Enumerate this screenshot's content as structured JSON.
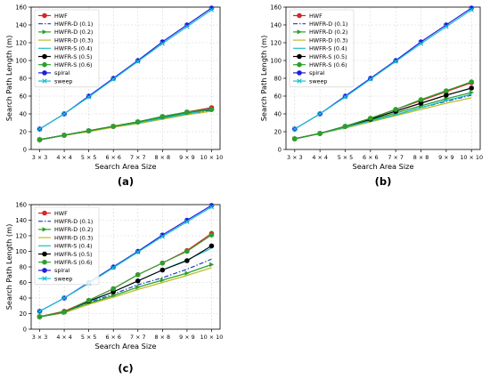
{
  "chart_data": [
    {
      "type": "line",
      "panel_label": "(a)",
      "xlabel": "Search Area Size",
      "ylabel": "Search Path Length (m)",
      "categories": [
        "3 × 3",
        "4 × 4",
        "5 × 5",
        "6 × 6",
        "7 × 7",
        "8 × 8",
        "9 × 9",
        "10 × 10"
      ],
      "ylim": [
        0,
        160
      ],
      "yticks": [
        0,
        20,
        40,
        60,
        80,
        100,
        120,
        140,
        160
      ],
      "grid": true,
      "legend": "top-left",
      "series": [
        {
          "name": "HWF",
          "color": "#d62728",
          "style": "solid",
          "marker": "o",
          "values": [
            11,
            16,
            21,
            26,
            31,
            36,
            42,
            47
          ]
        },
        {
          "name": "HWFR-D (0.1)",
          "color": "#1f3fbf",
          "style": "dashdot",
          "marker": "none",
          "values": [
            11,
            16,
            21,
            25,
            30,
            35,
            40,
            44
          ]
        },
        {
          "name": "HWFR-D (0.2)",
          "color": "#2ca02c",
          "style": "solid",
          "marker": ">",
          "values": [
            11,
            16,
            21,
            26,
            31,
            36,
            41,
            46
          ]
        },
        {
          "name": "HWFR-D (0.3)",
          "color": "#bcbd22",
          "style": "solid",
          "marker": "none",
          "values": [
            11,
            16,
            20,
            25,
            29,
            34,
            39,
            43
          ]
        },
        {
          "name": "HWFR-S (0.4)",
          "color": "#17becf",
          "style": "solid",
          "marker": "none",
          "values": [
            11,
            16,
            21,
            26,
            30,
            35,
            40,
            45
          ]
        },
        {
          "name": "HWFR-S (0.5)",
          "color": "#000000",
          "style": "solid",
          "marker": "o",
          "values": [
            11,
            16,
            21,
            26,
            31,
            37,
            42,
            45
          ]
        },
        {
          "name": "HWFR-S (0.6)",
          "color": "#2ca02c",
          "style": "solid",
          "marker": "o",
          "values": [
            11,
            16,
            21,
            26,
            31,
            37,
            42,
            45
          ]
        },
        {
          "name": "spiral",
          "color": "#1f1fdd",
          "style": "solid",
          "marker": "o",
          "values": [
            23,
            40,
            60,
            80,
            100,
            121,
            140,
            159
          ]
        },
        {
          "name": "sweep",
          "color": "#17becf",
          "style": "solid",
          "marker": "x",
          "values": [
            23,
            40,
            59,
            79,
            99,
            119,
            138,
            157
          ]
        }
      ]
    },
    {
      "type": "line",
      "panel_label": "(b)",
      "xlabel": "Search Area Size",
      "ylabel": "Search Path Length (m)",
      "categories": [
        "3 × 3",
        "4 × 4",
        "5 × 5",
        "6 × 6",
        "7 × 7",
        "8 × 8",
        "9 × 9",
        "10 × 10"
      ],
      "ylim": [
        0,
        160
      ],
      "yticks": [
        0,
        20,
        40,
        60,
        80,
        100,
        120,
        140,
        160
      ],
      "grid": true,
      "legend": "top-left",
      "series": [
        {
          "name": "HWF",
          "color": "#d62728",
          "style": "solid",
          "marker": "o",
          "values": [
            12,
            18,
            26,
            35,
            45,
            55,
            65,
            75
          ]
        },
        {
          "name": "HWFR-D (0.1)",
          "color": "#1f3fbf",
          "style": "dashdot",
          "marker": "none",
          "values": [
            12,
            18,
            25,
            32,
            39,
            47,
            54,
            61
          ]
        },
        {
          "name": "HWFR-D (0.2)",
          "color": "#2ca02c",
          "style": "solid",
          "marker": ">",
          "values": [
            12,
            18,
            25,
            33,
            41,
            49,
            57,
            64
          ]
        },
        {
          "name": "HWFR-D (0.3)",
          "color": "#bcbd22",
          "style": "solid",
          "marker": "none",
          "values": [
            12,
            18,
            24,
            31,
            38,
            45,
            52,
            58
          ]
        },
        {
          "name": "HWFR-S (0.4)",
          "color": "#17becf",
          "style": "solid",
          "marker": "none",
          "values": [
            12,
            18,
            25,
            32,
            39,
            47,
            55,
            62
          ]
        },
        {
          "name": "HWFR-S (0.5)",
          "color": "#000000",
          "style": "solid",
          "marker": "o",
          "values": [
            12,
            18,
            26,
            34,
            43,
            52,
            61,
            69
          ]
        },
        {
          "name": "HWFR-S (0.6)",
          "color": "#2ca02c",
          "style": "solid",
          "marker": "o",
          "values": [
            12,
            18,
            26,
            35,
            45,
            56,
            66,
            76
          ]
        },
        {
          "name": "spiral",
          "color": "#1f1fdd",
          "style": "solid",
          "marker": "o",
          "values": [
            23,
            40,
            60,
            80,
            100,
            121,
            140,
            159
          ]
        },
        {
          "name": "sweep",
          "color": "#17becf",
          "style": "solid",
          "marker": "x",
          "values": [
            23,
            40,
            59,
            79,
            99,
            119,
            138,
            157
          ]
        }
      ]
    },
    {
      "type": "line",
      "panel_label": "(c)",
      "xlabel": "Search Area Size",
      "ylabel": "Search Path Length (m)",
      "categories": [
        "3 × 3",
        "4 × 4",
        "5 × 5",
        "6 × 6",
        "7 × 7",
        "8 × 8",
        "9 × 9",
        "10 × 10"
      ],
      "ylim": [
        0,
        160
      ],
      "yticks": [
        0,
        20,
        40,
        60,
        80,
        100,
        120,
        140,
        160
      ],
      "grid": true,
      "legend": "top-left",
      "series": [
        {
          "name": "HWF",
          "color": "#d62728",
          "style": "solid",
          "marker": "o",
          "values": [
            16,
            23,
            37,
            52,
            70,
            85,
            101,
            123
          ]
        },
        {
          "name": "HWFR-D (0.1)",
          "color": "#1f3fbf",
          "style": "dashdot",
          "marker": "none",
          "values": [
            16,
            22,
            34,
            45,
            57,
            66,
            77,
            90
          ]
        },
        {
          "name": "HWFR-D (0.2)",
          "color": "#2ca02c",
          "style": "solid",
          "marker": ">",
          "values": [
            16,
            21,
            33,
            43,
            54,
            63,
            72,
            83
          ]
        },
        {
          "name": "HWFR-D (0.3)",
          "color": "#bcbd22",
          "style": "solid",
          "marker": "none",
          "values": [
            16,
            21,
            32,
            41,
            51,
            60,
            69,
            79
          ]
        },
        {
          "name": "HWFR-S (0.4)",
          "color": "#17becf",
          "style": "solid",
          "marker": "none",
          "values": [
            16,
            22,
            35,
            48,
            62,
            76,
            89,
            104
          ]
        },
        {
          "name": "HWFR-S (0.5)",
          "color": "#000000",
          "style": "solid",
          "marker": "o",
          "values": [
            16,
            22,
            36,
            48,
            62,
            76,
            88,
            107
          ]
        },
        {
          "name": "HWFR-S (0.6)",
          "color": "#2ca02c",
          "style": "solid",
          "marker": "o",
          "values": [
            16,
            22,
            37,
            52,
            70,
            85,
            100,
            121
          ]
        },
        {
          "name": "spiral",
          "color": "#1f1fdd",
          "style": "solid",
          "marker": "o",
          "values": [
            23,
            40,
            60,
            80,
            100,
            121,
            140,
            159
          ]
        },
        {
          "name": "sweep",
          "color": "#17becf",
          "style": "solid",
          "marker": "x",
          "values": [
            23,
            40,
            59,
            79,
            99,
            119,
            138,
            157
          ]
        }
      ]
    }
  ]
}
